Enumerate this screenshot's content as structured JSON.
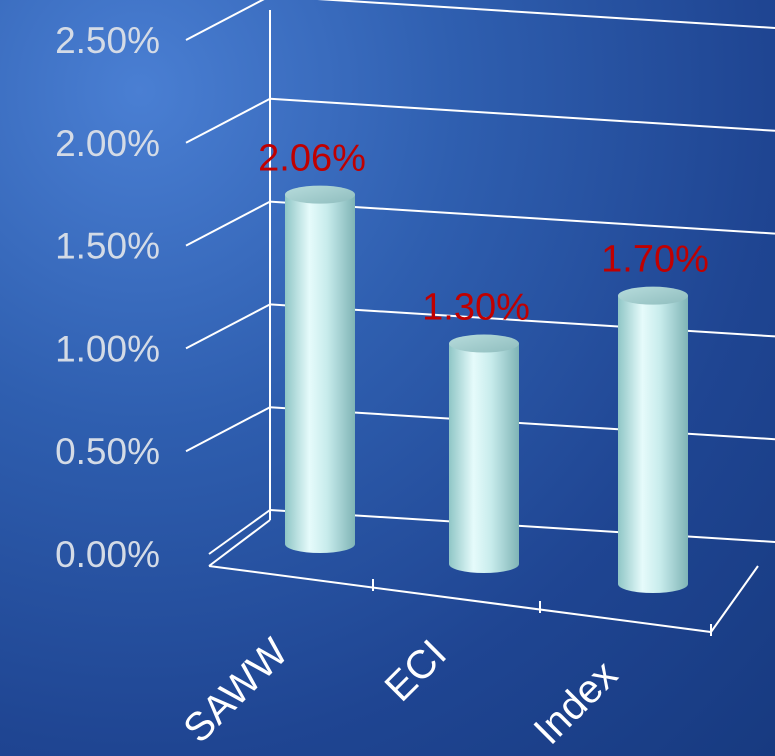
{
  "chart_data": {
    "type": "bar",
    "style": "3d-cylinder",
    "categories": [
      "SAWW",
      "ECI",
      "Index"
    ],
    "values": [
      2.06,
      1.3,
      1.7
    ],
    "value_labels": [
      "2.06%",
      "1.30%",
      "1.70%"
    ],
    "y_ticks": [
      "0.00%",
      "0.50%",
      "1.00%",
      "1.50%",
      "2.00%",
      "2.50%"
    ],
    "ylim": [
      0,
      2.5
    ],
    "grid": true,
    "title": "",
    "xlabel": "",
    "ylabel": "",
    "colors": {
      "bar": "#cdeff0",
      "value_label": "#c00000",
      "tick_label": "#d4dbe6",
      "category_label": "#ffffff",
      "gridline": "#ffffff"
    }
  }
}
